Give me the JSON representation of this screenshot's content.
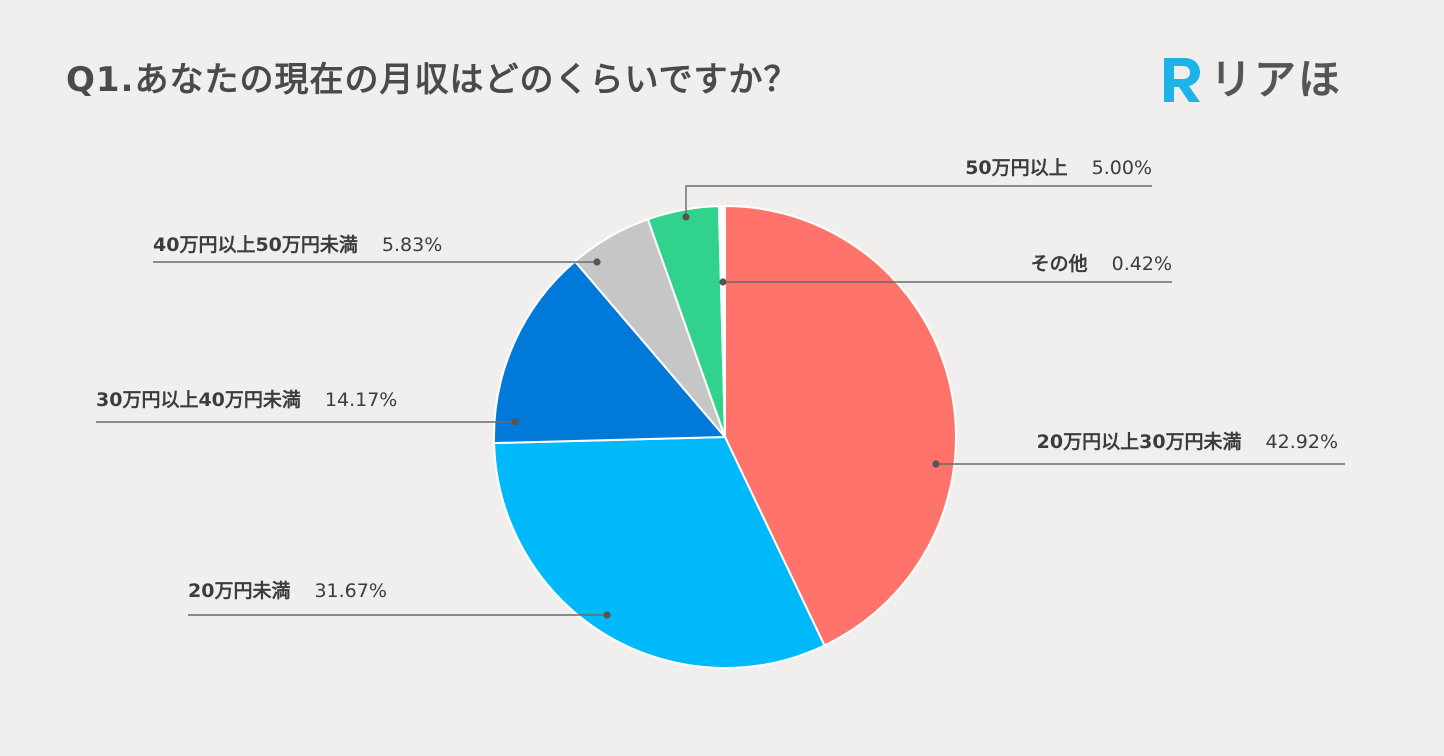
{
  "header": {
    "title": "Q1.あなたの現在の月収はどのくらいですか？",
    "logo_text": "リアほ",
    "logo_mark": "R",
    "logo_color": "#1bb3e8"
  },
  "chart_data": {
    "type": "pie",
    "title": "Q1.あなたの現在の月収はどのくらいですか？",
    "start_angle_deg": 0,
    "direction": "clockwise",
    "slices": [
      {
        "label": "20万円以上30万円未満",
        "value": 42.92,
        "display": "42.92%",
        "color": "#ff736a"
      },
      {
        "label": "20万円未満",
        "value": 31.67,
        "display": "31.67%",
        "color": "#00b9fb"
      },
      {
        "label": "30万円以上40万円未満",
        "value": 14.17,
        "display": "14.17%",
        "color": "#0079d9"
      },
      {
        "label": "40万円以上50万円未満",
        "value": 5.83,
        "display": "5.83%",
        "color": "#c6c6c6"
      },
      {
        "label": "50万円以上",
        "value": 5.0,
        "display": "5.00%",
        "color": "#31d38c"
      },
      {
        "label": "その他",
        "value": 0.42,
        "display": "0.42%",
        "color": "#ffffff"
      }
    ]
  }
}
